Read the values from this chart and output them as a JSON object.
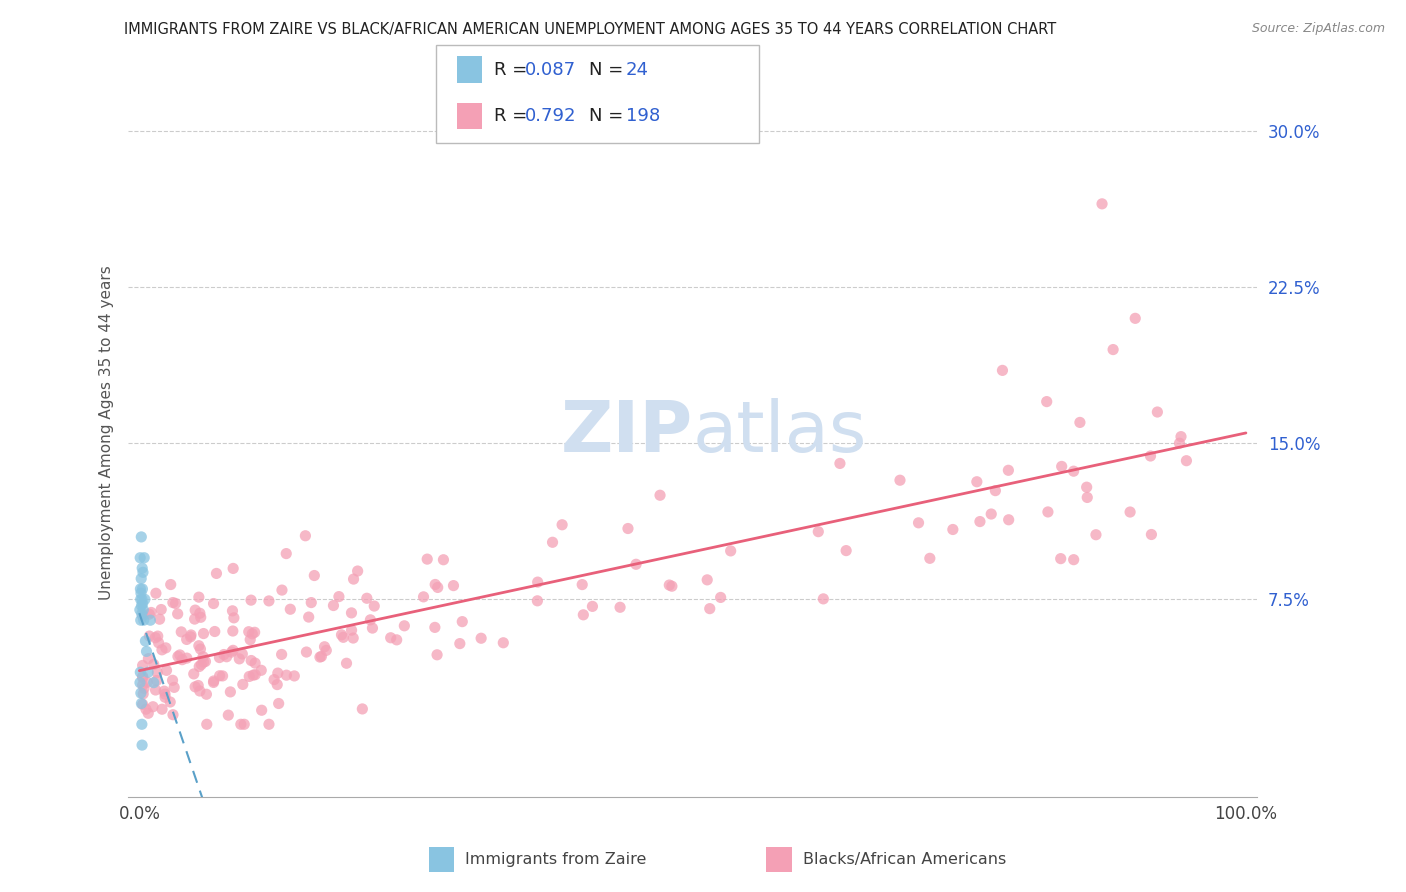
{
  "title": "IMMIGRANTS FROM ZAIRE VS BLACK/AFRICAN AMERICAN UNEMPLOYMENT AMONG AGES 35 TO 44 YEARS CORRELATION CHART",
  "source": "Source: ZipAtlas.com",
  "ylabel": "Unemployment Among Ages 35 to 44 years",
  "blue_color": "#89c4e1",
  "pink_color": "#f4a0b5",
  "blue_line_color": "#5aa0c8",
  "pink_line_color": "#e8607a",
  "text_blue": "#3060d0",
  "legend_text_dark": "#222222",
  "background": "#ffffff",
  "grid_color": "#cccccc",
  "spine_color": "#aaaaaa",
  "watermark_color": "#d0dff0",
  "ytick_color": "#3060d0",
  "xtick_color": "#444444",
  "title_color": "#222222",
  "source_color": "#888888"
}
